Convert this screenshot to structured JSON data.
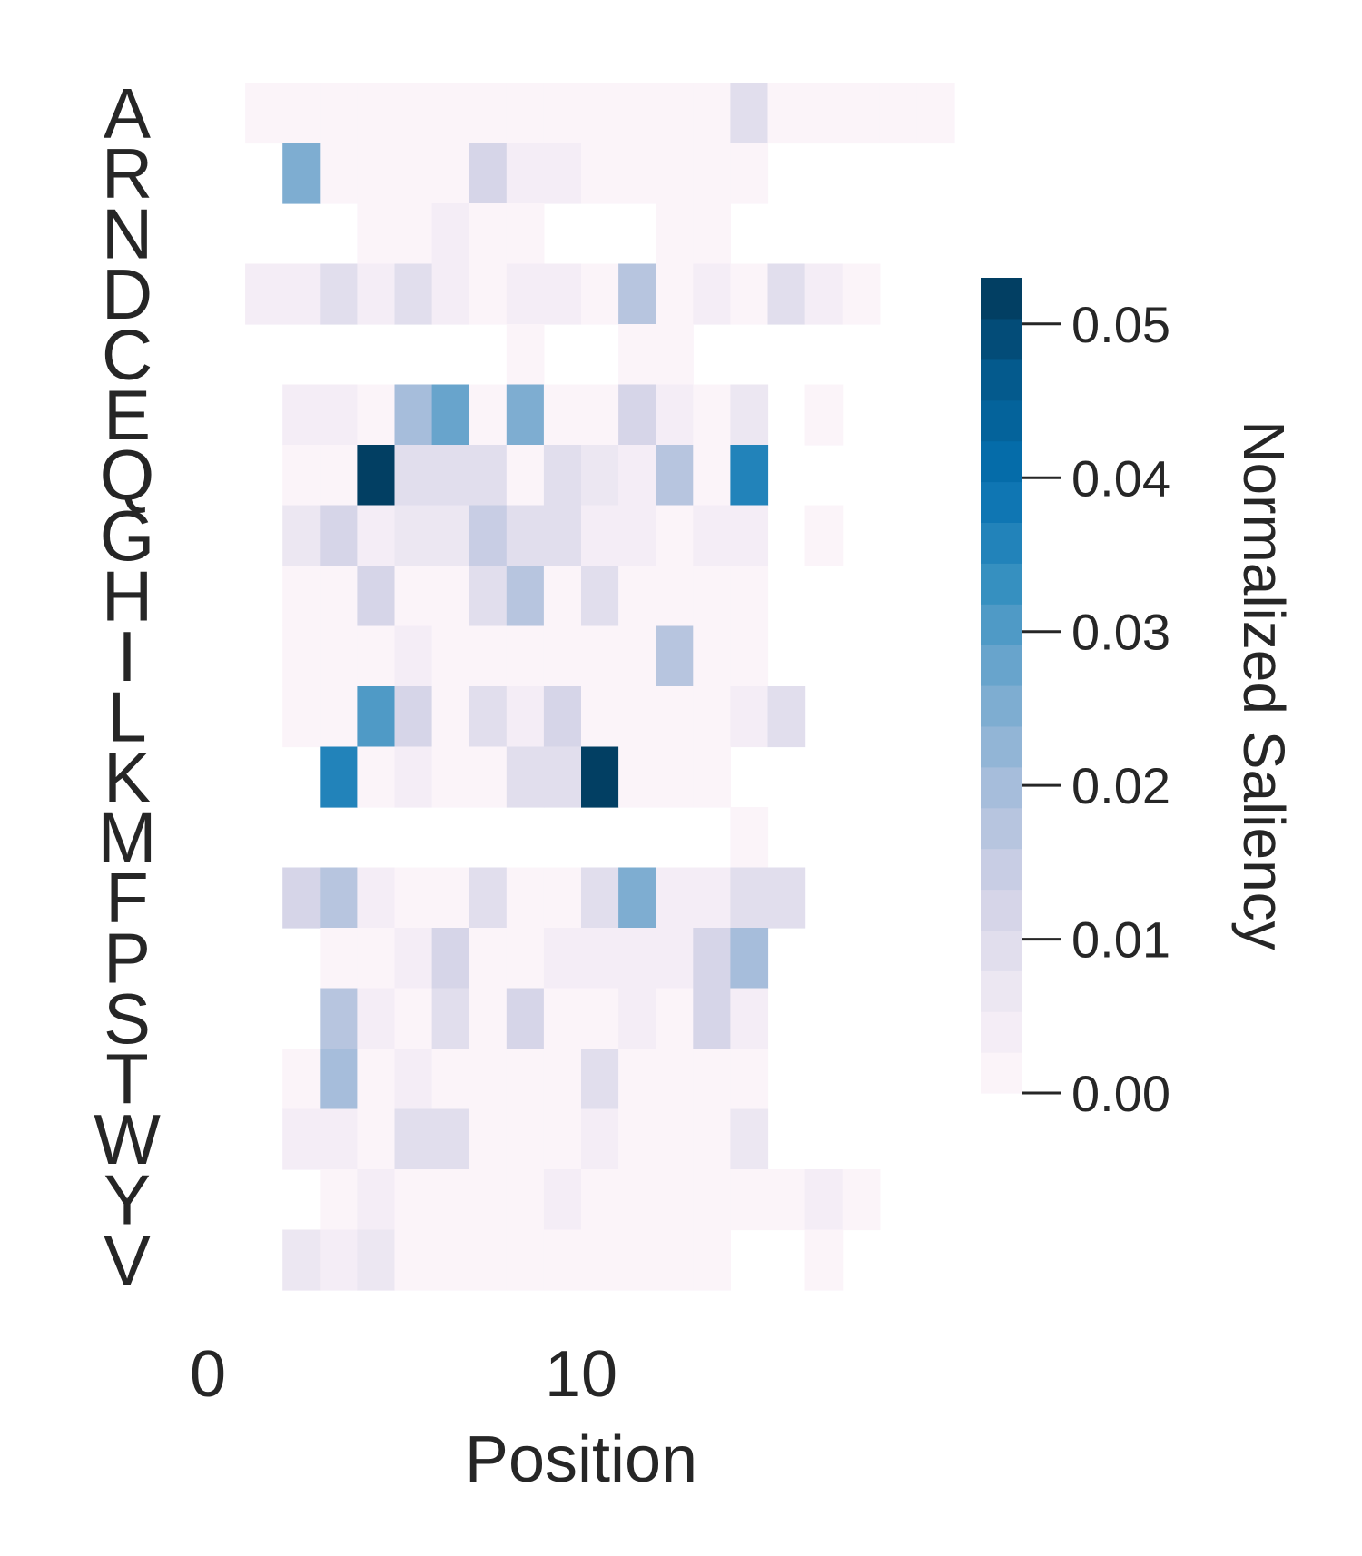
{
  "chart_data": {
    "type": "heatmap",
    "title": "",
    "xlabel": "Position",
    "ylabel": "",
    "x_ticks": [
      0,
      10
    ],
    "rows": [
      "A",
      "R",
      "N",
      "D",
      "C",
      "E",
      "Q",
      "G",
      "H",
      "I",
      "L",
      "K",
      "M",
      "F",
      "P",
      "S",
      "T",
      "W",
      "Y",
      "V"
    ],
    "n_positions": 20,
    "values": [
      [
        null,
        0.001,
        0.001,
        0.001,
        0.001,
        0.001,
        0.001,
        0.002,
        0.002,
        0.001,
        0.001,
        0.001,
        0.001,
        0.001,
        0.01,
        0.001,
        0.001,
        0.001,
        0.001,
        0.001
      ],
      [
        null,
        null,
        0.024,
        0.001,
        0.001,
        0.001,
        0.001,
        0.013,
        0.003,
        0.003,
        0.001,
        0.001,
        0.002,
        0.001,
        0.001,
        null,
        null,
        null,
        null,
        null
      ],
      [
        null,
        null,
        null,
        null,
        0.001,
        0.0,
        0.005,
        0.001,
        0.001,
        null,
        null,
        null,
        0.001,
        0.001,
        null,
        null,
        null,
        null,
        null,
        null
      ],
      [
        null,
        0.005,
        0.003,
        0.008,
        0.003,
        0.008,
        0.005,
        0.001,
        0.005,
        0.005,
        0.001,
        0.018,
        0.001,
        0.003,
        0.001,
        0.008,
        0.005,
        0.001,
        null,
        null
      ],
      [
        null,
        null,
        null,
        null,
        null,
        null,
        null,
        null,
        0.001,
        null,
        null,
        0.001,
        0.001,
        null,
        null,
        null,
        null,
        null,
        null,
        null
      ],
      [
        null,
        null,
        0.003,
        0.003,
        0.001,
        0.019,
        0.027,
        0.001,
        0.026,
        0.001,
        0.0,
        0.011,
        0.003,
        0.001,
        0.006,
        null,
        0.001,
        null,
        null,
        null
      ],
      [
        null,
        null,
        0.001,
        0.0,
        0.053,
        0.008,
        0.008,
        0.008,
        0.001,
        0.01,
        0.006,
        0.003,
        0.018,
        0.002,
        0.036,
        null,
        null,
        null,
        null,
        null
      ],
      [
        null,
        null,
        0.006,
        0.011,
        0.003,
        0.007,
        0.007,
        0.014,
        0.009,
        0.009,
        0.003,
        0.005,
        0.001,
        0.003,
        0.003,
        null,
        0.001,
        null,
        null,
        null
      ],
      [
        null,
        null,
        0.001,
        0.001,
        0.013,
        0.001,
        0.001,
        0.009,
        0.018,
        0.002,
        0.009,
        0.001,
        0.001,
        0.001,
        0.001,
        null,
        null,
        null,
        null,
        null
      ],
      [
        null,
        null,
        0.001,
        0.001,
        0.001,
        0.005,
        0.002,
        0.001,
        0.001,
        0.002,
        0.001,
        0.001,
        0.018,
        0.0,
        0.001,
        null,
        null,
        null,
        null,
        null
      ],
      [
        null,
        null,
        0.001,
        0.001,
        0.031,
        0.013,
        0.001,
        0.008,
        0.003,
        0.011,
        0.001,
        0.001,
        0.002,
        0.001,
        0.003,
        0.01,
        null,
        null,
        null,
        null
      ],
      [
        null,
        null,
        null,
        0.037,
        0.001,
        0.005,
        0.001,
        0.001,
        0.009,
        0.009,
        0.053,
        0.002,
        0.001,
        0.001,
        null,
        null,
        null,
        null,
        null,
        null
      ],
      [
        null,
        null,
        null,
        null,
        null,
        null,
        null,
        null,
        null,
        null,
        null,
        null,
        null,
        null,
        0.002,
        null,
        null,
        null,
        null,
        null
      ],
      [
        null,
        null,
        0.013,
        0.018,
        0.005,
        0.002,
        0.001,
        0.008,
        0.0,
        0.001,
        0.008,
        0.024,
        0.005,
        0.003,
        0.008,
        0.008,
        null,
        null,
        null,
        null
      ],
      [
        null,
        null,
        null,
        0.001,
        0.001,
        0.003,
        0.011,
        0.002,
        0.001,
        0.005,
        0.003,
        0.003,
        0.003,
        0.012,
        0.02,
        null,
        null,
        null,
        null,
        null
      ],
      [
        null,
        null,
        null,
        0.017,
        0.005,
        0.001,
        0.008,
        0.001,
        0.012,
        0.001,
        0.001,
        0.005,
        0.001,
        0.012,
        0.003,
        null,
        null,
        null,
        null,
        null
      ],
      [
        null,
        null,
        0.002,
        0.019,
        0.001,
        0.003,
        0.001,
        0.001,
        0.001,
        0.001,
        0.008,
        0.001,
        0.0,
        0.0,
        0.001,
        null,
        null,
        null,
        null,
        null
      ],
      [
        null,
        null,
        0.005,
        0.003,
        0.001,
        0.008,
        0.008,
        0.001,
        0.001,
        0.001,
        0.003,
        0.001,
        0.001,
        0.001,
        0.006,
        null,
        null,
        null,
        null,
        null
      ],
      [
        null,
        null,
        null,
        0.001,
        0.003,
        0.001,
        0.001,
        0.001,
        0.001,
        0.003,
        0.001,
        0.001,
        0.001,
        0.001,
        0.001,
        0.001,
        0.003,
        0.001,
        null,
        null
      ],
      [
        null,
        null,
        0.007,
        0.004,
        0.006,
        0.001,
        0.002,
        0.001,
        0.0,
        0.001,
        0.001,
        0.001,
        0.001,
        0.001,
        null,
        null,
        0.001,
        null,
        null,
        null
      ]
    ],
    "color_scale": {
      "label": "Normalized Saliency",
      "min": 0.0,
      "max": 0.053,
      "ticks": [
        0.0,
        0.01,
        0.02,
        0.03,
        0.04,
        0.05
      ],
      "tick_labels": [
        "0.00",
        "0.01",
        "0.02",
        "0.03",
        "0.04",
        "0.05"
      ],
      "colormap": "PuBu",
      "colors": [
        "#fff7fb",
        "#ece7f2",
        "#d0d1e6",
        "#a6bddb",
        "#74a9cf",
        "#3690c0",
        "#0570b0",
        "#045a8d",
        "#023858"
      ],
      "levels": 20
    },
    "legend": "colorbar-right",
    "grid": false
  }
}
